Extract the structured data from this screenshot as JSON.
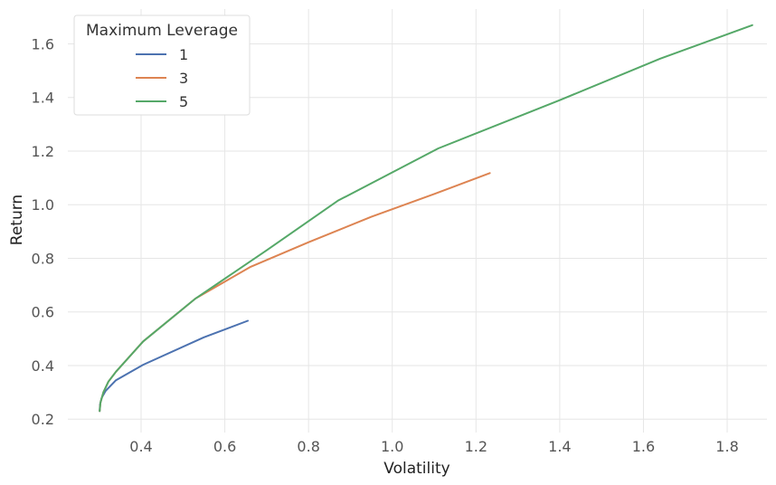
{
  "chart_data": {
    "type": "line",
    "title": "",
    "xlabel": "Volatility",
    "ylabel": "Return",
    "xlim": [
      0.225,
      1.895
    ],
    "ylim": [
      0.15,
      1.73
    ],
    "xticks": [
      0.4,
      0.6,
      0.8,
      1.0,
      1.2,
      1.4,
      1.6,
      1.8
    ],
    "yticks": [
      0.2,
      0.4,
      0.6,
      0.8,
      1.0,
      1.2,
      1.4,
      1.6
    ],
    "grid": true,
    "legend": {
      "title": "Maximum Leverage",
      "position": "top-left"
    },
    "series": [
      {
        "name": "1",
        "color": "#4c72b0",
        "x": [
          0.301,
          0.302,
          0.306,
          0.315,
          0.34,
          0.405,
          0.55,
          0.655
        ],
        "y": [
          0.23,
          0.255,
          0.28,
          0.305,
          0.345,
          0.403,
          0.505,
          0.567
        ]
      },
      {
        "name": "3",
        "color": "#dd8452",
        "x": [
          0.301,
          0.303,
          0.31,
          0.322,
          0.34,
          0.405,
          0.53,
          0.66,
          0.8,
          0.95,
          1.1,
          1.233
        ],
        "y": [
          0.23,
          0.262,
          0.3,
          0.34,
          0.377,
          0.49,
          0.65,
          0.767,
          0.86,
          0.955,
          1.04,
          1.118
        ]
      },
      {
        "name": "5",
        "color": "#55a868",
        "x": [
          0.301,
          0.303,
          0.31,
          0.322,
          0.34,
          0.405,
          0.53,
          0.7,
          0.87,
          1.11,
          1.4,
          1.64,
          1.86
        ],
        "y": [
          0.23,
          0.262,
          0.3,
          0.34,
          0.377,
          0.49,
          0.65,
          0.83,
          1.015,
          1.21,
          1.39,
          1.545,
          1.67
        ]
      }
    ]
  }
}
